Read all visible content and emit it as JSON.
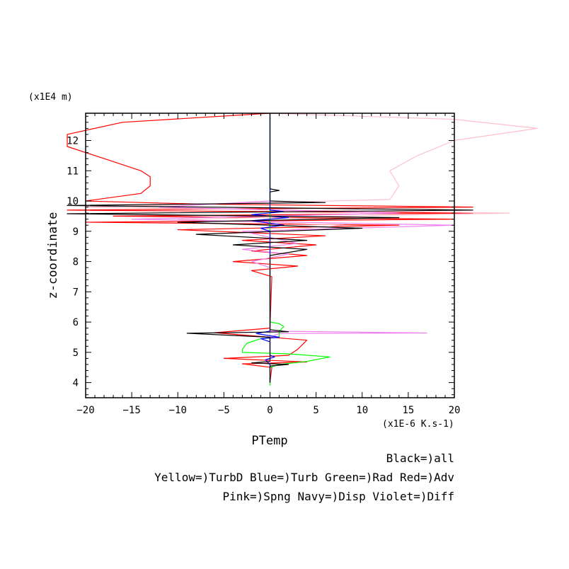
{
  "chart_data": {
    "type": "line",
    "xlabel": "PTemp",
    "ylabel": "z-coordinate",
    "x_unit": "(x1E-6 K.s-1)",
    "y_unit": "(x1E4 m)",
    "xlim": [
      -20,
      20
    ],
    "ylim": [
      3.5,
      12.9
    ],
    "x_ticks": [
      -20,
      -15,
      -10,
      -5,
      0,
      5,
      10,
      15,
      20
    ],
    "y_ticks": [
      4,
      5,
      6,
      7,
      8,
      9,
      10,
      11,
      12
    ],
    "legend_lines": [
      "Black=)all",
      "Yellow=)TurbD Blue=)Turb Green=)Rad Red=)Adv",
      "Pink=)Spng Navy=)Disp Violet=)Diff"
    ],
    "series": [
      {
        "name": "Adv",
        "color": "#ff0000",
        "points": [
          [
            0,
            4.0
          ],
          [
            0.2,
            4.5
          ],
          [
            -3,
            4.62
          ],
          [
            4,
            4.68
          ],
          [
            -5,
            4.8
          ],
          [
            2,
            4.9
          ],
          [
            3,
            5.1
          ],
          [
            4,
            5.4
          ],
          [
            -6,
            5.65
          ],
          [
            0,
            5.8
          ],
          [
            0.2,
            7.5
          ],
          [
            -2,
            7.7
          ],
          [
            3,
            7.85
          ],
          [
            -4,
            8.0
          ],
          [
            4,
            8.2
          ],
          [
            -2,
            8.35
          ],
          [
            5,
            8.55
          ],
          [
            -3,
            8.7
          ],
          [
            6,
            8.85
          ],
          [
            -10,
            9.05
          ],
          [
            14,
            9.2
          ],
          [
            -20,
            9.3
          ],
          [
            20,
            9.4
          ],
          [
            -17,
            9.5
          ],
          [
            22,
            9.6
          ],
          [
            -22,
            9.7
          ],
          [
            22,
            9.8
          ],
          [
            -8,
            9.9
          ],
          [
            -20,
            10.0
          ],
          [
            -14,
            10.25
          ],
          [
            -13,
            10.5
          ],
          [
            -13,
            10.8
          ],
          [
            -14,
            11.0
          ],
          [
            -18,
            11.4
          ],
          [
            -22,
            11.8
          ],
          [
            -22,
            12.2
          ],
          [
            -16,
            12.6
          ],
          [
            0,
            12.9
          ]
        ]
      },
      {
        "name": "Spng",
        "color": "#ffc0cb",
        "points": [
          [
            0,
            4.0
          ],
          [
            0,
            9.0
          ],
          [
            8,
            9.2
          ],
          [
            -10,
            9.4
          ],
          [
            26,
            9.6
          ],
          [
            -20,
            9.8
          ],
          [
            13,
            10.05
          ],
          [
            14,
            10.5
          ],
          [
            13,
            11.0
          ],
          [
            16,
            11.5
          ],
          [
            20,
            12.0
          ],
          [
            29,
            12.4
          ],
          [
            20,
            12.7
          ],
          [
            0,
            12.9
          ]
        ]
      },
      {
        "name": "Diff",
        "color": "#ee82ee",
        "points": [
          [
            0,
            4.0
          ],
          [
            0,
            5.5
          ],
          [
            1,
            5.62
          ],
          [
            17,
            5.64
          ],
          [
            0,
            5.7
          ],
          [
            0,
            7.8
          ],
          [
            -2,
            8.0
          ],
          [
            2,
            8.25
          ],
          [
            -3,
            8.4
          ],
          [
            3,
            8.6
          ],
          [
            -3,
            9.0
          ],
          [
            20,
            9.2
          ],
          [
            -15,
            9.4
          ],
          [
            14,
            9.6
          ],
          [
            -12,
            9.8
          ],
          [
            0,
            10.0
          ],
          [
            0,
            12.9
          ]
        ]
      },
      {
        "name": "Rad",
        "color": "#00ff00",
        "points": [
          [
            0,
            3.9
          ],
          [
            0,
            4.5
          ],
          [
            1,
            4.6
          ],
          [
            4,
            4.7
          ],
          [
            6.5,
            4.85
          ],
          [
            2,
            4.95
          ],
          [
            -3,
            5.0
          ],
          [
            -3,
            5.1
          ],
          [
            -2.5,
            5.3
          ],
          [
            -1,
            5.45
          ],
          [
            1,
            5.5
          ],
          [
            1,
            5.7
          ],
          [
            1.5,
            5.85
          ],
          [
            1,
            5.95
          ],
          [
            0,
            6.0
          ],
          [
            0,
            12.9
          ]
        ]
      },
      {
        "name": "Turb",
        "color": "#0000ff",
        "points": [
          [
            0,
            4.0
          ],
          [
            0,
            4.6
          ],
          [
            -0.5,
            4.75
          ],
          [
            0.5,
            4.85
          ],
          [
            0,
            4.9
          ],
          [
            0,
            5.35
          ],
          [
            -1,
            5.45
          ],
          [
            1,
            5.5
          ],
          [
            -1.5,
            5.62
          ],
          [
            0,
            5.7
          ],
          [
            0,
            9.0
          ],
          [
            -1,
            9.1
          ],
          [
            1.5,
            9.2
          ],
          [
            -2,
            9.35
          ],
          [
            2,
            9.45
          ],
          [
            -2,
            9.55
          ],
          [
            1.5,
            9.65
          ],
          [
            0,
            9.7
          ],
          [
            0,
            12.9
          ]
        ]
      },
      {
        "name": "all",
        "color": "#000000",
        "points": [
          [
            0,
            4.0
          ],
          [
            0,
            4.55
          ],
          [
            2,
            4.6
          ],
          [
            -2,
            4.65
          ],
          [
            0,
            4.7
          ],
          [
            0,
            5.5
          ],
          [
            -9,
            5.63
          ],
          [
            2,
            5.68
          ],
          [
            0,
            5.75
          ],
          [
            0,
            8.2
          ],
          [
            4,
            8.4
          ],
          [
            -4,
            8.55
          ],
          [
            4,
            8.7
          ],
          [
            -8,
            8.9
          ],
          [
            10,
            9.1
          ],
          [
            -10,
            9.3
          ],
          [
            14,
            9.45
          ],
          [
            -22,
            9.58
          ],
          [
            22,
            9.7
          ],
          [
            -22,
            9.85
          ],
          [
            6,
            9.95
          ],
          [
            0,
            10.0
          ],
          [
            0,
            10.3
          ],
          [
            1,
            10.35
          ],
          [
            0,
            10.4
          ],
          [
            0,
            12.9
          ]
        ]
      }
    ]
  }
}
